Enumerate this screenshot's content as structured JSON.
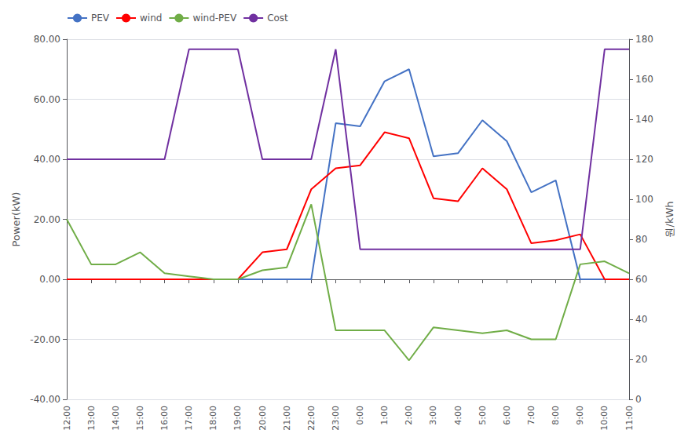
{
  "chart_data": {
    "type": "line",
    "categories": [
      "12:00",
      "13:00",
      "14:00",
      "15:00",
      "16:00",
      "17:00",
      "18:00",
      "19:00",
      "20:00",
      "21:00",
      "22:00",
      "23:00",
      "0:00",
      "1:00",
      "2:00",
      "3:00",
      "4:00",
      "5:00",
      "6:00",
      "7:00",
      "8:00",
      "9:00",
      "10:00",
      "11:00"
    ],
    "series": [
      {
        "name": "PEV",
        "color": "#4472C4",
        "values": [
          0,
          0,
          0,
          0,
          0,
          0,
          0,
          0,
          0,
          0,
          0,
          52,
          51,
          66,
          70,
          41,
          42,
          53,
          46,
          29,
          33,
          0,
          0,
          0
        ]
      },
      {
        "name": "wind",
        "color": "#FF0000",
        "values": [
          0,
          0,
          0,
          0,
          0,
          0,
          0,
          0,
          9,
          10,
          30,
          37,
          38,
          49,
          47,
          27,
          26,
          37,
          30,
          12,
          13,
          15,
          0,
          0
        ]
      },
      {
        "name": "wind-PEV",
        "color": "#70AD47",
        "values": [
          20,
          5,
          5,
          9,
          2,
          1,
          0,
          0,
          3,
          4,
          25,
          -17,
          -17,
          -17,
          -27,
          -16,
          -17,
          -18,
          -17,
          -20,
          -20,
          5,
          6,
          2
        ]
      },
      {
        "name": "Cost",
        "color": "#7030A0",
        "axis": "y2",
        "values": [
          120,
          120,
          120,
          120,
          120,
          175,
          175,
          175,
          120,
          120,
          120,
          175,
          75,
          75,
          75,
          75,
          75,
          75,
          75,
          75,
          75,
          75,
          175,
          175
        ]
      }
    ],
    "ylabel": "Power(kW)",
    "y2label": "원/kWh",
    "ylim": [
      -40,
      80
    ],
    "yticks": [
      {
        "value": -40,
        "label": "-40.00"
      },
      {
        "value": -20,
        "label": "-20.00"
      },
      {
        "value": 0,
        "label": "0.00"
      },
      {
        "value": 20,
        "label": "20.00"
      },
      {
        "value": 40,
        "label": "40.00"
      },
      {
        "value": 60,
        "label": "60.00"
      },
      {
        "value": 80,
        "label": "80.00"
      }
    ],
    "y2lim": [
      0,
      180
    ],
    "y2ticks": [
      0,
      20,
      40,
      60,
      80,
      100,
      120,
      140,
      160,
      180
    ],
    "grid": true,
    "legend": "upper left"
  }
}
